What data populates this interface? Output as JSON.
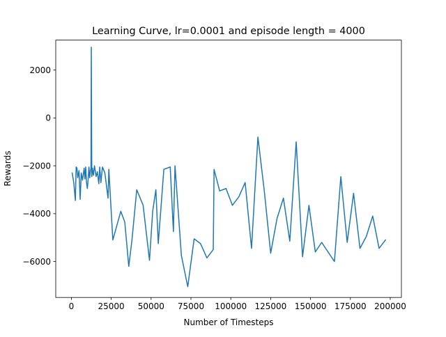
{
  "chart_data": {
    "type": "line",
    "title": "Learning Curve, lr=0.0001 and episode length = 4000",
    "xlabel": "Number of Timesteps",
    "ylabel": "Rewards",
    "xlim": [
      -9800,
      207000
    ],
    "ylim": [
      -7500,
      3250
    ],
    "xticks": [
      0,
      25000,
      50000,
      75000,
      100000,
      125000,
      150000,
      175000,
      200000
    ],
    "xtick_labels": [
      "0",
      "25000",
      "50000",
      "75000",
      "100000",
      "125000",
      "150000",
      "175000",
      "200000"
    ],
    "yticks": [
      -6000,
      -4000,
      -2000,
      0,
      2000
    ],
    "ytick_labels": [
      "−6000",
      "−4000",
      "−2000",
      "0",
      "2000"
    ],
    "grid": false,
    "line_color": "#1f77b4",
    "series": [
      {
        "x": [
          500,
          1500,
          2500,
          3000,
          3500,
          4000,
          4800,
          5500,
          6200,
          7000,
          7500,
          8000,
          8500,
          9000,
          9500,
          10000,
          10500,
          11000,
          11500,
          12000,
          12300,
          12500,
          12800,
          13200,
          13800,
          14500,
          15500,
          16300,
          17200,
          17800,
          18500,
          19500,
          21000,
          23000,
          23500,
          26000,
          31000,
          33500,
          36000,
          38000,
          41000,
          45000,
          49000,
          51000,
          53000,
          54500,
          58000,
          62000,
          64000,
          65000,
          69000,
          73000,
          77000,
          81000,
          85000,
          89000,
          89500,
          93000,
          97000,
          101000,
          105000,
          109000,
          113000,
          117000,
          121000,
          125000,
          129000,
          133000,
          137000,
          141000,
          145000,
          149000,
          153000,
          157000,
          161000,
          165000,
          169000,
          173000,
          177000,
          181000,
          185000,
          189000,
          193000,
          197000
        ],
        "values": [
          -2300,
          -2700,
          -3450,
          -2050,
          -2100,
          -2500,
          -2200,
          -3400,
          -2300,
          -2600,
          -2350,
          -2100,
          -2550,
          -2050,
          -2700,
          -2950,
          -2600,
          -2050,
          -2500,
          -2200,
          -2100,
          2950,
          -2450,
          -2100,
          -2400,
          -2000,
          -2450,
          -2250,
          -2750,
          -2050,
          -2700,
          -2050,
          -2300,
          -3350,
          -2150,
          -5100,
          -3900,
          -4350,
          -6200,
          -5100,
          -3000,
          -3650,
          -5950,
          -3900,
          -3000,
          -5250,
          -2150,
          -2050,
          -4750,
          -2000,
          -5750,
          -7050,
          -5050,
          -5250,
          -5850,
          -5500,
          -2150,
          -3050,
          -2950,
          -3650,
          -3300,
          -2700,
          -5450,
          -800,
          -3050,
          -5650,
          -4200,
          -3350,
          -5150,
          -1000,
          -5800,
          -3650,
          -5600,
          -5200,
          -5600,
          -6000,
          -2450,
          -5200,
          -3150,
          -5450,
          -4950,
          -4100,
          -5450,
          -5100
        ]
      }
    ]
  }
}
